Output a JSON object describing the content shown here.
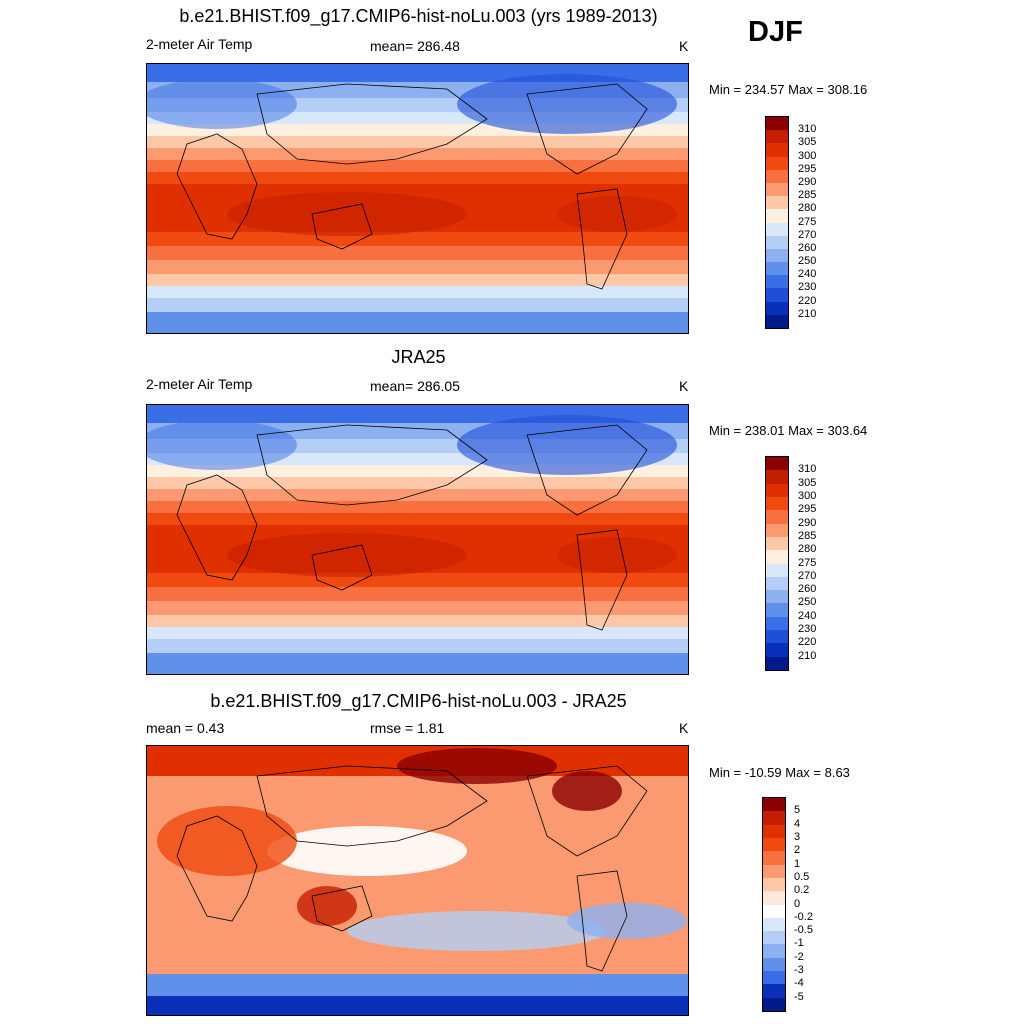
{
  "season": "DJF",
  "panels": [
    {
      "title": "b.e21.BHIST.f09_g17.CMIP6-hist-noLu.003 (yrs 1989-2013)",
      "left_label": "2-meter Air Temp",
      "center_label": "mean= 286.48",
      "units": "K",
      "minmax": "Min = 234.57 Max = 308.16",
      "colorbar": {
        "labels": [
          "310",
          "305",
          "300",
          "295",
          "290",
          "285",
          "280",
          "275",
          "270",
          "260",
          "250",
          "240",
          "230",
          "220",
          "210"
        ],
        "colors": [
          "#8b0000",
          "#c41e00",
          "#e03000",
          "#f04a10",
          "#f87040",
          "#fb9a70",
          "#fdc8a8",
          "#fdf0e0",
          "#d8e8fa",
          "#b4cef5",
          "#8cb0f0",
          "#6090ea",
          "#3a6ee6",
          "#1f4fd8",
          "#0a2fb8",
          "#001a8c"
        ]
      },
      "field": "model"
    },
    {
      "title": "JRA25",
      "left_label": "2-meter Air Temp",
      "center_label": "mean= 286.05",
      "units": "K",
      "minmax": "Min = 238.01 Max = 303.64",
      "colorbar": {
        "labels": [
          "310",
          "305",
          "300",
          "295",
          "290",
          "285",
          "280",
          "275",
          "270",
          "260",
          "250",
          "240",
          "230",
          "220",
          "210"
        ],
        "colors": [
          "#8b0000",
          "#c41e00",
          "#e03000",
          "#f04a10",
          "#f87040",
          "#fb9a70",
          "#fdc8a8",
          "#fdf0e0",
          "#d8e8fa",
          "#b4cef5",
          "#8cb0f0",
          "#6090ea",
          "#3a6ee6",
          "#1f4fd8",
          "#0a2fb8",
          "#001a8c"
        ]
      },
      "field": "obs"
    },
    {
      "title": "b.e21.BHIST.f09_g17.CMIP6-hist-noLu.003 - JRA25",
      "left_label": "mean =   0.43",
      "center_label": "rmse =   1.81",
      "units": "K",
      "minmax": "Min = -10.59 Max =   8.63",
      "colorbar": {
        "labels": [
          "5",
          "4",
          "3",
          "2",
          "1",
          "0.5",
          "0.2",
          "0",
          "-0.2",
          "-0.5",
          "-1",
          "-2",
          "-3",
          "-4",
          "-5"
        ],
        "colors": [
          "#8b0000",
          "#c41e00",
          "#e03000",
          "#f04a10",
          "#f87040",
          "#fb9a70",
          "#fdc8a8",
          "#fde8dc",
          "#ffffff",
          "#d8e8fa",
          "#b4cef5",
          "#8cb0f0",
          "#6090ea",
          "#3a6ee6",
          "#0a2fb8",
          "#001a8c"
        ]
      },
      "field": "diff"
    }
  ]
}
